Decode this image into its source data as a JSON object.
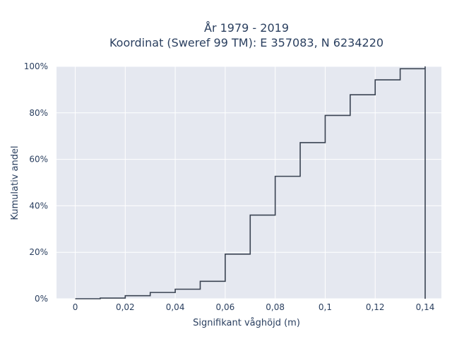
{
  "chart_data": {
    "type": "line",
    "line_shape": "step-after",
    "title_lines": [
      "År 1979 - 2019",
      "Koordinat (Sweref 99 TM): E 357083, N 6234220"
    ],
    "xlabel": "Signifikant våghöjd (m)",
    "ylabel": "Kumulativ andel",
    "xlim": [
      -0.0075,
      0.1465
    ],
    "ylim": [
      0,
      1.0
    ],
    "x_ticks": [
      0,
      0.02,
      0.04,
      0.06,
      0.08,
      0.1,
      0.12,
      0.14
    ],
    "x_tick_labels": [
      "0",
      "0,02",
      "0,04",
      "0,06",
      "0,08",
      "0,1",
      "0,12",
      "0,14"
    ],
    "y_ticks": [
      0,
      0.2,
      0.4,
      0.6,
      0.8,
      1.0
    ],
    "y_tick_labels": [
      "0%",
      "20%",
      "40%",
      "60%",
      "80%",
      "100%"
    ],
    "grid": true,
    "background": "#e5e8f0",
    "line_color": "#3a4352",
    "x": [
      0,
      0.01,
      0.02,
      0.03,
      0.04,
      0.05,
      0.06,
      0.07,
      0.08,
      0.09,
      0.1,
      0.11,
      0.12,
      0.13,
      0.14
    ],
    "y": [
      0.0,
      0.003,
      0.013,
      0.027,
      0.041,
      0.075,
      0.192,
      0.36,
      0.527,
      0.672,
      0.789,
      0.878,
      0.942,
      0.99,
      1.0
    ],
    "final_drop_to": 0.0
  }
}
